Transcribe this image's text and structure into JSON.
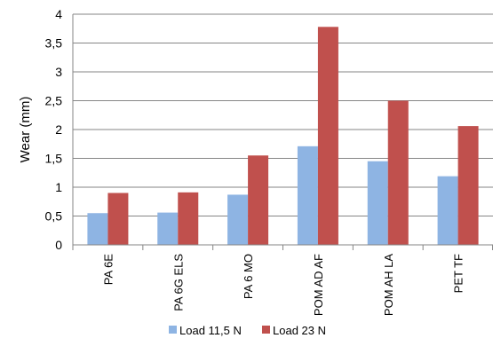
{
  "chart_data": {
    "type": "bar",
    "title": "",
    "xlabel": "",
    "ylabel": "Wear (mm)",
    "ylim": [
      0,
      4
    ],
    "y_ticks": [
      "0",
      "0,5",
      "1",
      "1,5",
      "2",
      "2,5",
      "3",
      "3,5",
      "4"
    ],
    "y_tick_values": [
      0,
      0.5,
      1,
      1.5,
      2,
      2.5,
      3,
      3.5,
      4
    ],
    "categories": [
      "PA 6E",
      "PA 6G ELS",
      "PA 6 MO",
      "POM AD AF",
      "POM AH LA",
      "PET TF"
    ],
    "series": [
      {
        "name": "Load 11,5 N",
        "color": "#8EB4E3",
        "values": [
          0.55,
          0.56,
          0.87,
          1.71,
          1.45,
          1.19
        ]
      },
      {
        "name": "Load 23 N",
        "color": "#C0504D",
        "values": [
          0.9,
          0.91,
          1.55,
          3.78,
          2.5,
          2.06
        ]
      }
    ],
    "grid": "horizontal",
    "legend_position": "bottom"
  }
}
